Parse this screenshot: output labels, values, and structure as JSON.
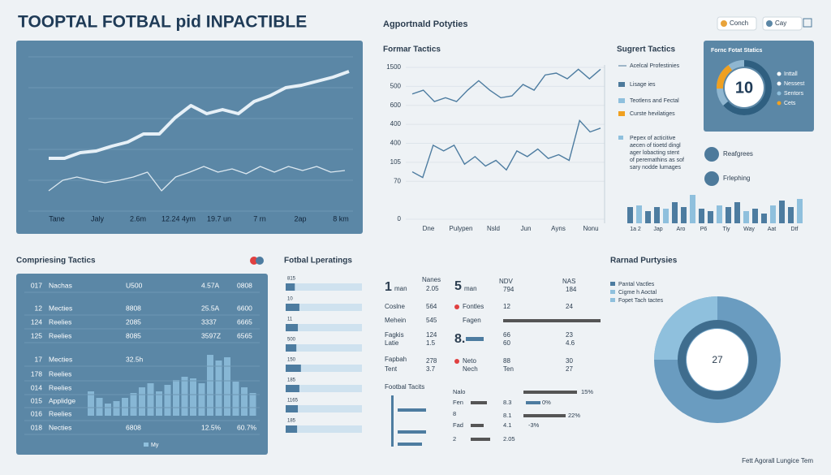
{
  "header": {
    "title": "TOOPTAL FOTBAL pid INPACTIBLE",
    "subtitle": "Agportnald Potyties",
    "buttons": [
      "Conch",
      "Cay"
    ]
  },
  "trend": {
    "x_labels": [
      "Tane",
      "Jaly",
      "2.6m",
      "12.24 4ym",
      "19.7 un",
      "7 rn",
      "2ap",
      "8 km"
    ],
    "ylim": [
      0,
      100
    ],
    "series": [
      {
        "values": [
          32.5,
          32.5,
          36,
          37,
          40,
          42.5,
          47.5,
          47.5,
          57.5,
          65,
          60,
          62.5,
          60,
          67.5,
          71,
          76,
          77.5,
          80,
          82.5,
          86
        ]
      },
      {
        "values": [
          12.5,
          19,
          21,
          19,
          17.5,
          19,
          21,
          24,
          12.5,
          21,
          24,
          27.5,
          24,
          26,
          23,
          27.5,
          24,
          27.5,
          25,
          27.5,
          24,
          25
        ]
      }
    ]
  },
  "formar": {
    "title": "Formar Tactics",
    "ylim": [
      0,
      8
    ],
    "yticks": [
      {
        "value": 8,
        "label": "1500"
      },
      {
        "value": 7,
        "label": "500"
      },
      {
        "value": 6,
        "label": "600"
      },
      {
        "value": 5,
        "label": "400"
      },
      {
        "value": 4,
        "label": "400"
      },
      {
        "value": 3,
        "label": "105"
      },
      {
        "value": 2,
        "label": "70"
      },
      0
    ],
    "x_labels": [
      "Dne",
      "Pulypen",
      "Nsld",
      "Jun",
      "Ayns",
      "Nonu"
    ],
    "series": [
      {
        "values": [
          6.6,
          6.8,
          6.2,
          6.4,
          6.2,
          6.8,
          7.3,
          6.8,
          6.4,
          6.5,
          7.1,
          6.8,
          7.6,
          7.7,
          7.4,
          7.9,
          7.4,
          7.9
        ]
      },
      {
        "values": [
          2.5,
          2.2,
          3.9,
          3.6,
          3.9,
          2.9,
          3.3,
          2.8,
          3.1,
          2.6,
          3.6,
          3.3,
          3.7,
          3.2,
          3.4,
          3.1,
          5.2,
          4.6,
          4.8
        ]
      }
    ]
  },
  "sugrert": {
    "title": "Sugrert Tactics",
    "legend": [
      "Acelcal Profestinies",
      "Lisage ies",
      "Teotlens and Fectal",
      "Curste hevilatiges"
    ],
    "note": [
      "Pepex of acticitive",
      "aecen of tioetd dingl",
      "ager lobacting stent",
      "of peremathins as sof",
      "sary nodde lumages"
    ]
  },
  "stats_card": {
    "title": "Fornc Fotat Statics",
    "value": 10,
    "legend": [
      "Inttall",
      "Nessest",
      "Sentors",
      "Cets"
    ]
  },
  "badges": [
    "Reafgrees",
    "Frlephing"
  ],
  "mini_bars": {
    "ylim": [
      0,
      40
    ],
    "values": [
      20,
      22,
      15,
      20,
      18,
      26,
      20,
      35,
      18,
      15,
      22,
      20,
      26,
      15,
      18,
      12,
      22,
      28,
      20,
      30
    ],
    "x_labels": [
      "1a 2",
      "Jap",
      "Aro",
      "P6",
      "Tiy",
      "Way",
      "Aat",
      "Dtf"
    ]
  },
  "compriesing": {
    "title": "Compriesing Tactics",
    "rows": [
      [
        "017",
        "Nachas",
        "U500",
        "4.57A",
        "0808"
      ],
      [
        "12",
        "Mecties",
        "8808",
        "25.5A",
        "6600"
      ],
      [
        "124",
        "Reelies",
        "2085",
        "3337",
        "6665"
      ],
      [
        "125",
        "Reelies",
        "8085",
        "3597Z",
        "6565"
      ],
      [
        "17",
        "Mecties",
        "32.5h"
      ],
      [
        "178",
        "Reelies"
      ],
      [
        "014",
        "Reelies"
      ],
      [
        "015",
        "Applidge"
      ],
      [
        "016",
        "Reelies"
      ],
      [
        "018",
        "Necties",
        "6808",
        "12.5%",
        "60.7%"
      ]
    ],
    "bars": {
      "ylim": [
        0,
        80
      ],
      "values": [
        30,
        22,
        15,
        18,
        22,
        28,
        35,
        40,
        30,
        38,
        44,
        48,
        46,
        40,
        75,
        68,
        72,
        42,
        35,
        28
      ]
    },
    "legend": "My"
  },
  "ratings": {
    "title": "Fotbal Lperatings",
    "items": [
      {
        "label": "815",
        "value": 12
      },
      {
        "label": "10",
        "value": 18
      },
      {
        "label": "11",
        "value": 16
      },
      {
        "label": "500",
        "value": 14
      },
      {
        "label": "150",
        "value": 20
      },
      {
        "label": "185",
        "value": 18
      },
      {
        "label": "1165",
        "value": 16
      },
      {
        "label": "185",
        "value": 15
      }
    ]
  },
  "middle_table": {
    "cells": [
      "1",
      "man",
      "Nanes",
      "2.05",
      "5",
      "man",
      "NDV",
      "794",
      "NAS",
      "184",
      "Coslne",
      "564",
      "Fontles",
      "12",
      "24",
      "Mehein",
      "545",
      "Fagen",
      "Fagkis",
      "Latie",
      "124",
      "1.5",
      "8.",
      "66",
      "60",
      "23",
      "4.6",
      "Fapbah",
      "Tent",
      "278",
      "3.7",
      "Neto",
      "Nech",
      "88",
      "Ten",
      "30",
      "27"
    ]
  },
  "footbal_tacits": {
    "title": "Footbal Tacits",
    "cells": [
      "Nalo",
      "15%",
      "Fen",
      "8.3",
      "0%",
      "8",
      "8.1",
      "22%",
      "Fad",
      "4.1",
      "-3%",
      "2",
      "2.05"
    ]
  },
  "rarnad": {
    "title": "Rarnad Purtysies",
    "legend": [
      "Pantal Vactles",
      "Cigme h Aoctal",
      "Fopet Tach tactes"
    ],
    "value": 27
  },
  "footer": "Fett Agorall Lungice Tem"
}
